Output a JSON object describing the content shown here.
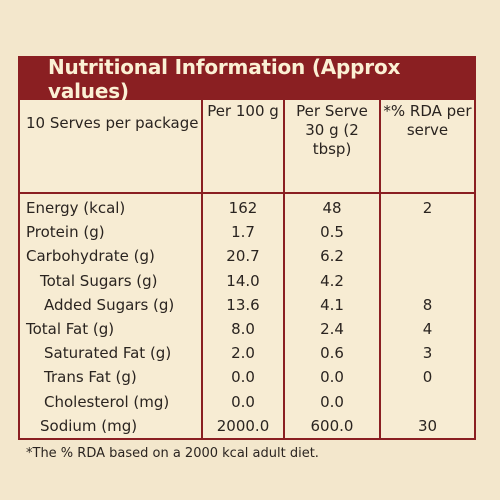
{
  "title": "Nutritional Information (Approx values)",
  "headers": {
    "col1": "10 Serves per package",
    "col2": "Per 100 g",
    "col3": "Per Serve 30 g (2 tbsp)",
    "col4": "*% RDA per serve"
  },
  "rows": [
    {
      "label": "Energy (kcal)",
      "per100": "162",
      "perServe": "48",
      "rda": "2"
    },
    {
      "label": "Protein (g)",
      "per100": "1.7",
      "perServe": "0.5",
      "rda": ""
    },
    {
      "label": "Carbohydrate (g)",
      "per100": "20.7",
      "perServe": "6.2",
      "rda": ""
    },
    {
      "label": "Total Sugars (g)",
      "per100": "14.0",
      "perServe": "4.2",
      "rda": ""
    },
    {
      "label": "Added Sugars (g)",
      "per100": "13.6",
      "perServe": "4.1",
      "rda": "8"
    },
    {
      "label": "Total Fat (g)",
      "per100": "8.0",
      "perServe": "2.4",
      "rda": "4"
    },
    {
      "label": "Saturated Fat (g)",
      "per100": "2.0",
      "perServe": "0.6",
      "rda": "3"
    },
    {
      "label": "Trans Fat (g)",
      "per100": "0.0",
      "perServe": "0.0",
      "rda": "0"
    },
    {
      "label": "Cholesterol (mg)",
      "per100": "0.0",
      "perServe": "0.0",
      "rda": ""
    },
    {
      "label": "Sodium (mg)",
      "per100": "2000.0",
      "perServe": "600.0",
      "rda": "30"
    }
  ],
  "footnote": "*The % RDA based on a 2000 kcal adult diet.",
  "colors": {
    "border": "#8a1f22",
    "header_bg": "#8a1f22",
    "header_text": "#fbf0d4",
    "panel_bg": "#f7ecd3",
    "page_bg": "#f3e7cc"
  }
}
